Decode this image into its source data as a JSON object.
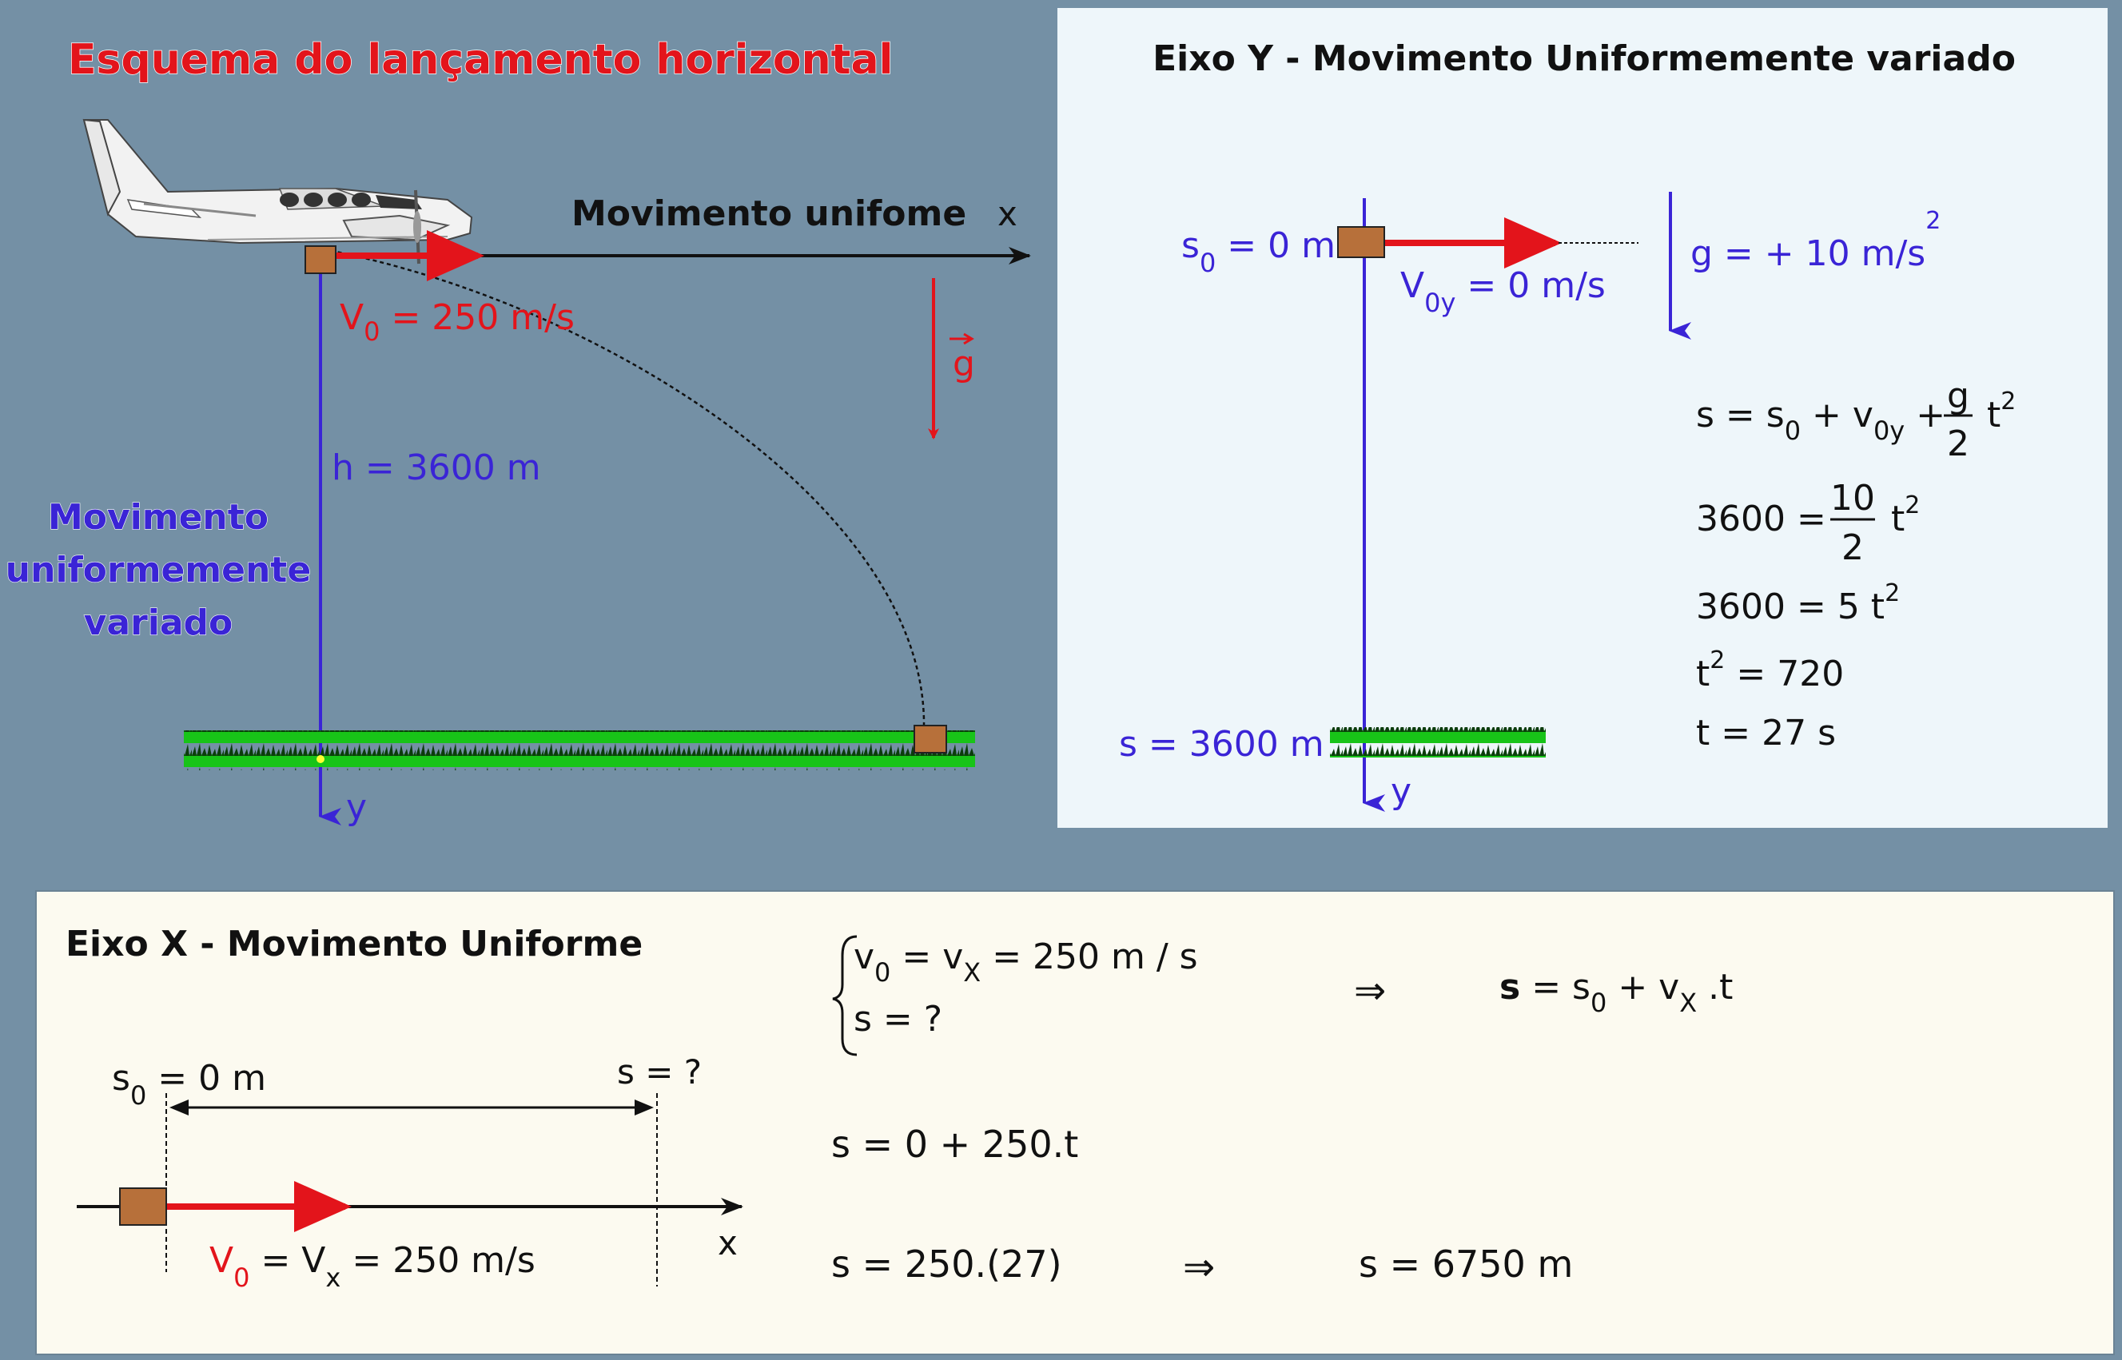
{
  "colors": {
    "background": "#7490a5",
    "panel_y": "#eef6fa",
    "panel_x": "#fcfaf0",
    "red": "#e3141b",
    "blue": "#3a24d6",
    "black": "#111111",
    "box": "#b7703a",
    "grass": "#18c418",
    "grass_dark": "#0a5a0a"
  },
  "icons": {
    "airplane": "airplane-icon",
    "grass": "grass-strip",
    "block": "brown-block"
  },
  "scheme": {
    "title": "Esquema do lançamento horizontal",
    "x_label": "Movimento unifome",
    "x_axis": "x",
    "y_axis": "y",
    "v0_main": "V",
    "v0_sub": "0",
    "v0_rest": " = 250 m/s",
    "g_label": "g",
    "h_label": "h = 3600 m",
    "muv_line1": "Movimento",
    "muv_line2": "uniformemente",
    "muv_line3": "variado"
  },
  "panel_y": {
    "title": "Eixo Y - Movimento Uniformemente variado",
    "s0_main": "s",
    "s0_sub": "0",
    "s0_rest": " = 0 m",
    "v0y_main": "V",
    "v0y_sub": "0y",
    "v0y_rest": " = 0 m/s",
    "g_text": "g = + 10 m/s",
    "g_exp": "2",
    "s_bottom": "s = 3600 m",
    "y_axis": "y",
    "eq1_a": "s = s",
    "eq1_a_sub": "0",
    "eq1_b": " + v",
    "eq1_b_sub": "0y",
    "eq1_c": " + ",
    "eq1_frac_num": "g",
    "eq1_frac_den": "2",
    "eq1_t": "t",
    "eq1_exp": "2",
    "eq2_a": "3600 = ",
    "eq2_frac_num": "10",
    "eq2_frac_den": "2",
    "eq2_t": "t",
    "eq2_exp": "2",
    "eq3_a": "3600 =  5 t",
    "eq3_exp": "2",
    "eq4_t": "t",
    "eq4_exp": "2",
    "eq4_rest": " =  720",
    "eq5": "t = 27 s"
  },
  "panel_x": {
    "title": "Eixo X - Movimento Uniforme",
    "s0_main": "s",
    "s0_sub": "0",
    "s0_rest": " = 0 m",
    "s_q": "s = ?",
    "x_axis": "x",
    "v0_main": "V",
    "v0_sub": "0",
    "v0_mid": " = V",
    "vx_sub": "x",
    "v0_rest": " = 250 m/s",
    "sys1_a": "v",
    "sys1_a_sub": "0",
    "sys1_b": " =   v",
    "sys1_b_sub": "X",
    "sys1_c": "  =  250 m / s",
    "sys2": "s  =  ?",
    "implies1": "⇒",
    "eq_s": "s",
    "eq_rest1": " = s",
    "eq_sub0": "0",
    "eq_rest2": "  + v",
    "eq_subx": "X",
    "eq_rest3": " .t",
    "line2": "s = 0  + 250.t",
    "line3": "s = 250.(27)",
    "implies2": "⇒",
    "result": "s  =  6750  m"
  }
}
